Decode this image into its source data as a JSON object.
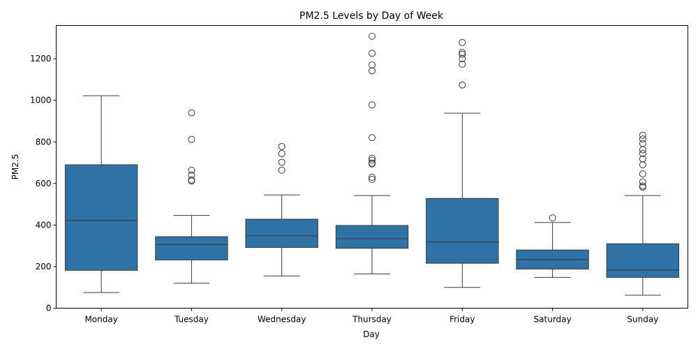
{
  "chart_data": {
    "type": "box",
    "title": "PM2.5 Levels by Day of Week",
    "xlabel": "Day",
    "ylabel": "PM2.5",
    "ylim": [
      0,
      1360
    ],
    "yticks": [
      0,
      200,
      400,
      600,
      800,
      1000,
      1200
    ],
    "grid": false,
    "box_color": "#2e72a6",
    "line_color": "#3a3a3a",
    "categories": [
      "Monday",
      "Tuesday",
      "Wednesday",
      "Thursday",
      "Friday",
      "Saturday",
      "Sunday"
    ],
    "boxes": [
      {
        "whisker_low": 75,
        "q1": 182,
        "median": 422,
        "q3": 690,
        "whisker_high": 1022,
        "outliers": []
      },
      {
        "whisker_low": 120,
        "q1": 232,
        "median": 306,
        "q3": 344,
        "whisker_high": 446,
        "outliers": [
          940,
          812,
          664,
          640,
          617,
          612
        ]
      },
      {
        "whisker_low": 155,
        "q1": 292,
        "median": 348,
        "q3": 428,
        "whisker_high": 545,
        "outliers": [
          778,
          744,
          702,
          664
        ]
      },
      {
        "whisker_low": 165,
        "q1": 288,
        "median": 334,
        "q3": 398,
        "whisker_high": 542,
        "outliers": [
          1308,
          1226,
          1170,
          1142,
          978,
          820,
          722,
          712,
          698,
          694,
          630,
          620
        ]
      },
      {
        "whisker_low": 100,
        "q1": 216,
        "median": 318,
        "q3": 528,
        "whisker_high": 938,
        "outliers": [
          1278,
          1230,
          1222,
          1200,
          1174,
          1074
        ]
      },
      {
        "whisker_low": 148,
        "q1": 188,
        "median": 234,
        "q3": 280,
        "whisker_high": 412,
        "outliers": [
          434
        ]
      },
      {
        "whisker_low": 62,
        "q1": 148,
        "median": 184,
        "q3": 310,
        "whisker_high": 542,
        "outliers": [
          832,
          814,
          792,
          762,
          744,
          718,
          690,
          646,
          608,
          588,
          582
        ]
      }
    ]
  }
}
